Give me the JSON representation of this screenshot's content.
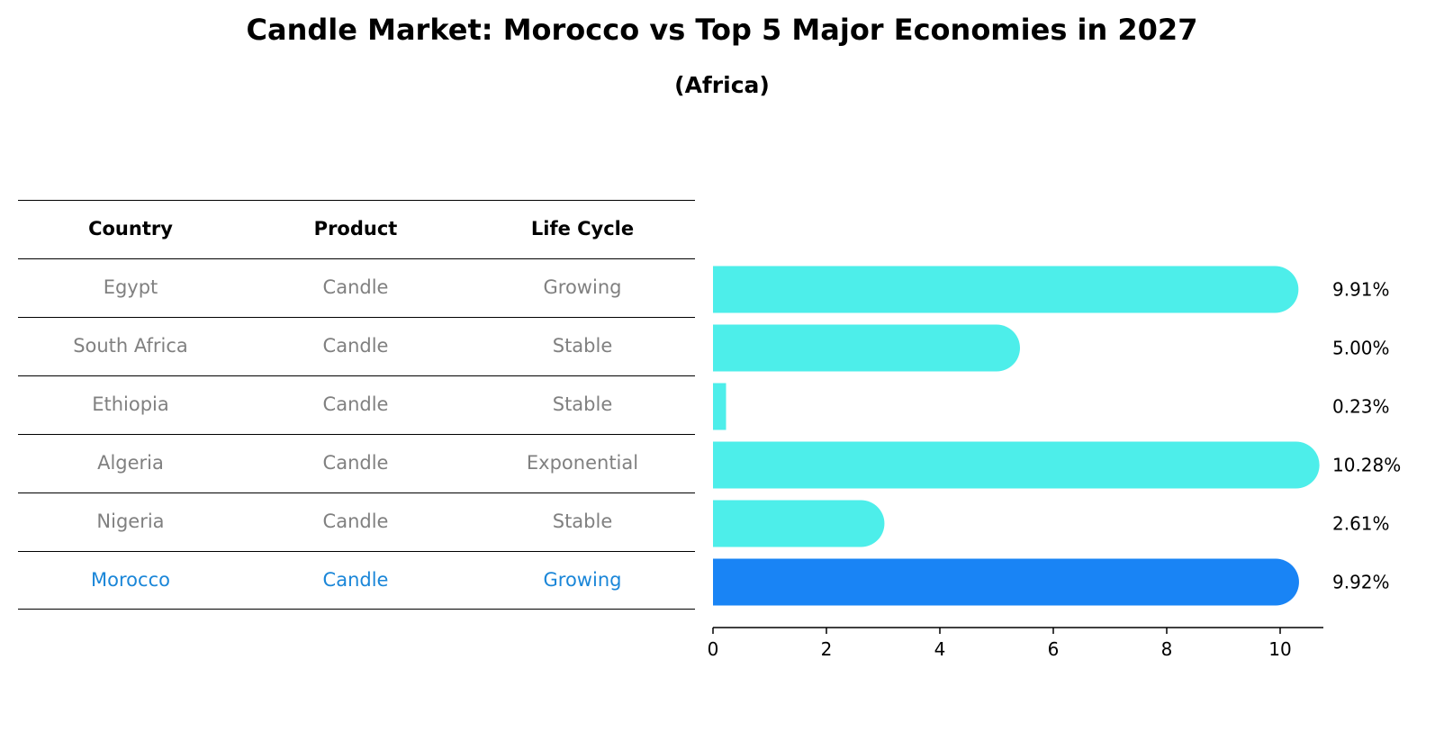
{
  "title": "Candle Market: Morocco vs Top 5 Major Economies in 2027",
  "subtitle": "(Africa)",
  "table": {
    "headers": [
      "Country",
      "Product",
      "Life Cycle"
    ],
    "rows": [
      [
        "Egypt",
        "Candle",
        "Growing"
      ],
      [
        "South Africa",
        "Candle",
        "Stable"
      ],
      [
        "Ethiopia",
        "Candle",
        "Stable"
      ],
      [
        "Algeria",
        "Candle",
        "Exponential"
      ],
      [
        "Nigeria",
        "Candle",
        "Stable"
      ],
      [
        "Morocco",
        "Candle",
        "Growing"
      ]
    ],
    "highlight_row": 5
  },
  "chart_data": {
    "type": "bar",
    "orientation": "horizontal",
    "categories": [
      "Egypt",
      "South Africa",
      "Ethiopia",
      "Algeria",
      "Nigeria",
      "Morocco"
    ],
    "values": [
      9.91,
      5.0,
      0.23,
      10.28,
      2.61,
      9.92
    ],
    "value_labels": [
      "9.91%",
      "5.00%",
      "0.23%",
      "10.28%",
      "2.61%",
      "9.92%"
    ],
    "xticks": [
      "0",
      "2",
      "4",
      "6",
      "8",
      "10"
    ],
    "xlim": [
      0,
      10.8
    ],
    "grid": false,
    "colors": {
      "default": "#4deeea",
      "highlight": "#1984f5",
      "highlight_index": 5
    }
  }
}
